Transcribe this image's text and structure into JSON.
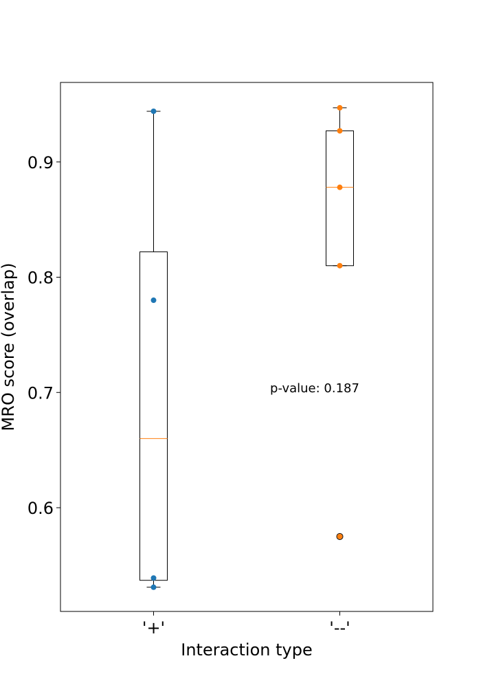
{
  "chart_data": {
    "type": "box",
    "xlabel": "Interaction type",
    "ylabel": "MRO score (overlap)",
    "categories": [
      "'+'",
      "'--'"
    ],
    "ylim": [
      0.51,
      0.969
    ],
    "yticks": [
      0.6,
      0.7,
      0.8,
      0.9
    ],
    "ytick_labels": [
      "0.6",
      "0.7",
      "0.8",
      "0.9"
    ],
    "grid": false,
    "annotation": "p-value: 0.187",
    "colors": {
      "median": "#ff7f0e",
      "series_plus": "#1f77b4",
      "series_minus": "#ff7f0e",
      "box": "#000000"
    },
    "boxes": [
      {
        "category": "'+'",
        "whisker_low": 0.531,
        "q1": 0.537,
        "median": 0.66,
        "q3": 0.822,
        "whisker_high": 0.944,
        "outliers": []
      },
      {
        "category": "'--'",
        "whisker_low": 0.81,
        "q1": 0.81,
        "median": 0.878,
        "q3": 0.927,
        "whisker_high": 0.947,
        "outliers": [
          0.575
        ]
      }
    ],
    "points": [
      {
        "category": "'+'",
        "values": [
          0.944,
          0.78,
          0.539,
          0.531
        ]
      },
      {
        "category": "'--'",
        "values": [
          0.947,
          0.927,
          0.878,
          0.81,
          0.575
        ]
      }
    ]
  }
}
